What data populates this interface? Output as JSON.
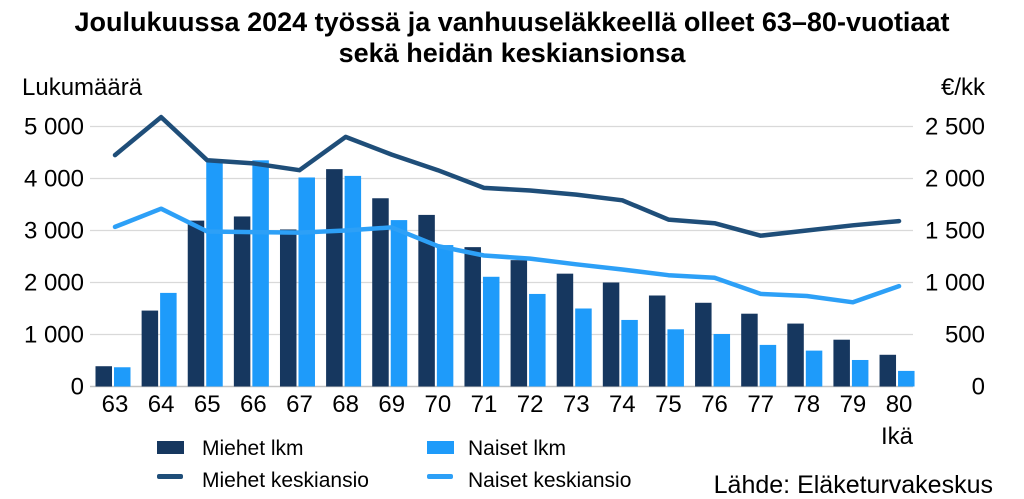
{
  "title": {
    "line1": "Joulukuussa 2024 työssä ja vanhuuseläkkeellä olleet 63–80-vuotiaat",
    "line2": "sekä heidän keskiansionsa"
  },
  "left_axis": {
    "label": "Lukumäärä",
    "ticks": [
      "0",
      "1 000",
      "2 000",
      "3 000",
      "4 000",
      "5 000"
    ]
  },
  "right_axis": {
    "label": "€/kk",
    "ticks": [
      "0",
      "500",
      "1 000",
      "1 500",
      "2 000",
      "2 500"
    ]
  },
  "x_axis": {
    "label": "Ikä",
    "categories": [
      "63",
      "64",
      "65",
      "66",
      "67",
      "68",
      "69",
      "70",
      "71",
      "72",
      "73",
      "74",
      "75",
      "76",
      "77",
      "78",
      "79",
      "80"
    ]
  },
  "legend": {
    "miehet_lkm": "Miehet lkm",
    "naiset_lkm": "Naiset lkm",
    "miehet_keskiansio": "Miehet keskiansio",
    "naiset_keskiansio": "Naiset keskiansio"
  },
  "source": "Lähde: Eläketurvakeskus",
  "colors": {
    "bar_dark": "#16375f",
    "bar_light": "#1e9bfa",
    "line_dark": "#1f4e79",
    "line_light": "#2da0f7",
    "grid": "#d9d9d9",
    "axis_line": "#c2c2c2",
    "text": "#000000"
  },
  "chart_data": {
    "type": "bar+line",
    "title": "Joulukuussa 2024 työssä ja vanhuuseläkkeellä olleet 63–80-vuotiaat sekä heidän keskiansionsa",
    "categories": [
      63,
      64,
      65,
      66,
      67,
      68,
      69,
      70,
      71,
      72,
      73,
      74,
      75,
      76,
      77,
      78,
      79,
      80
    ],
    "xlabel": "Ikä",
    "left_ylabel": "Lukumäärä",
    "right_ylabel": "€/kk",
    "left_ylim": [
      0,
      5000
    ],
    "right_ylim": [
      0,
      2500
    ],
    "grid": true,
    "legend_position": "bottom",
    "series": [
      {
        "name": "Miehet lkm",
        "type": "bar",
        "axis": "left",
        "values": [
          390,
          1460,
          3190,
          3270,
          3020,
          4180,
          3620,
          3300,
          2680,
          2430,
          2170,
          2000,
          1750,
          1610,
          1400,
          1210,
          900,
          610
        ]
      },
      {
        "name": "Naiset lkm",
        "type": "bar",
        "axis": "left",
        "values": [
          370,
          1800,
          4330,
          4350,
          4020,
          4050,
          3200,
          2720,
          2110,
          1780,
          1500,
          1280,
          1100,
          1010,
          800,
          690,
          510,
          300
        ]
      },
      {
        "name": "Miehet keskiansio",
        "type": "line",
        "axis": "right",
        "values": [
          2225,
          2590,
          2175,
          2145,
          2080,
          2400,
          2230,
          2080,
          1910,
          1885,
          1845,
          1790,
          1605,
          1570,
          1450,
          1500,
          1550,
          1590
        ]
      },
      {
        "name": "Naiset keskiansio",
        "type": "line",
        "axis": "right",
        "values": [
          1535,
          1710,
          1490,
          1485,
          1480,
          1500,
          1530,
          1350,
          1260,
          1230,
          1175,
          1125,
          1070,
          1045,
          890,
          870,
          810,
          965
        ]
      }
    ]
  }
}
